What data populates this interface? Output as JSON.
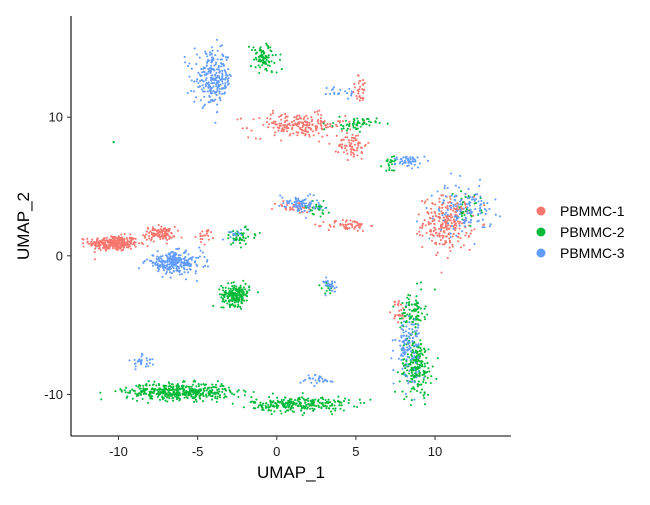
{
  "chart_data": {
    "type": "scatter",
    "title": "",
    "xlabel": "UMAP_1",
    "ylabel": "UMAP_2",
    "xlim": [
      -13,
      14.8
    ],
    "ylim": [
      -13,
      17.3
    ],
    "x_ticks": [
      -10,
      -5,
      0,
      5,
      10
    ],
    "x_tick_labels": [
      "-10",
      "-5",
      "0",
      "5",
      "10"
    ],
    "y_ticks": [
      -10,
      0,
      10
    ],
    "y_tick_labels": [
      "-10",
      "0",
      "10"
    ],
    "grid": false,
    "legend_position": "right",
    "point_size_note": "tiny dots",
    "series": [
      {
        "name": "PBMMC-1",
        "color": "#F8766D",
        "clusters": [
          {
            "cx": -10.3,
            "cy": 0.9,
            "rx": 1.4,
            "ry": 0.5,
            "n": 300
          },
          {
            "cx": -7.4,
            "cy": 1.6,
            "rx": 0.9,
            "ry": 0.45,
            "n": 110
          },
          {
            "cx": 10.8,
            "cy": 2.4,
            "rx": 1.4,
            "ry": 1.7,
            "n": 260
          },
          {
            "cx": 1.3,
            "cy": 9.4,
            "rx": 2.7,
            "ry": 0.8,
            "n": 200
          },
          {
            "cx": 4.8,
            "cy": 8.0,
            "rx": 0.8,
            "ry": 0.9,
            "n": 70
          },
          {
            "cx": 4.5,
            "cy": 2.2,
            "rx": 1.2,
            "ry": 0.4,
            "n": 60
          },
          {
            "cx": 1.2,
            "cy": 3.5,
            "rx": 1.2,
            "ry": 0.4,
            "n": 40
          },
          {
            "cx": 5.3,
            "cy": 12.0,
            "rx": 0.5,
            "ry": 0.9,
            "n": 30
          },
          {
            "cx": 7.7,
            "cy": -4.0,
            "rx": 0.4,
            "ry": 0.8,
            "n": 25
          },
          {
            "cx": -4.4,
            "cy": 1.4,
            "rx": 0.5,
            "ry": 0.5,
            "n": 20
          }
        ]
      },
      {
        "name": "PBMMC-2",
        "color": "#00BA38",
        "clusters": [
          {
            "cx": -2.6,
            "cy": -2.8,
            "rx": 0.8,
            "ry": 0.7,
            "n": 210
          },
          {
            "cx": -6.2,
            "cy": -9.8,
            "rx": 3.0,
            "ry": 0.55,
            "n": 460
          },
          {
            "cx": 1.5,
            "cy": -10.7,
            "rx": 2.8,
            "ry": 0.5,
            "n": 260
          },
          {
            "cx": 8.8,
            "cy": -8.0,
            "rx": 0.9,
            "ry": 1.9,
            "n": 210
          },
          {
            "cx": 8.6,
            "cy": -4.0,
            "rx": 0.7,
            "ry": 1.3,
            "n": 90
          },
          {
            "cx": -0.8,
            "cy": 14.2,
            "rx": 0.8,
            "ry": 1.0,
            "n": 90
          },
          {
            "cx": 5.0,
            "cy": 9.5,
            "rx": 1.2,
            "ry": 0.4,
            "n": 60
          },
          {
            "cx": -2.3,
            "cy": 1.4,
            "rx": 1.0,
            "ry": 0.6,
            "n": 50
          },
          {
            "cx": 2.5,
            "cy": 3.4,
            "rx": 0.8,
            "ry": 0.5,
            "n": 30
          },
          {
            "cx": 12.0,
            "cy": 3.5,
            "rx": 0.8,
            "ry": 1.0,
            "n": 30
          },
          {
            "cx": 7.2,
            "cy": 6.7,
            "rx": 0.5,
            "ry": 0.5,
            "n": 20
          },
          {
            "cx": 3.3,
            "cy": -2.3,
            "rx": 0.4,
            "ry": 0.4,
            "n": 15
          },
          {
            "cx": -10.3,
            "cy": 8.2,
            "rx": 0.05,
            "ry": 0.05,
            "n": 3
          }
        ]
      },
      {
        "name": "PBMMC-3",
        "color": "#619CFF",
        "clusters": [
          {
            "cx": -6.5,
            "cy": -0.5,
            "rx": 1.6,
            "ry": 0.7,
            "n": 260
          },
          {
            "cx": -4.0,
            "cy": 12.8,
            "rx": 1.1,
            "ry": 1.7,
            "n": 260
          },
          {
            "cx": 11.8,
            "cy": 3.3,
            "rx": 1.6,
            "ry": 1.6,
            "n": 130
          },
          {
            "cx": 8.3,
            "cy": -6.5,
            "rx": 0.7,
            "ry": 2.0,
            "n": 120
          },
          {
            "cx": 1.4,
            "cy": 3.8,
            "rx": 1.2,
            "ry": 0.6,
            "n": 80
          },
          {
            "cx": 8.4,
            "cy": 6.8,
            "rx": 0.8,
            "ry": 0.4,
            "n": 50
          },
          {
            "cx": -8.5,
            "cy": -7.6,
            "rx": 0.6,
            "ry": 0.4,
            "n": 30
          },
          {
            "cx": 2.6,
            "cy": -9.0,
            "rx": 1.0,
            "ry": 0.4,
            "n": 30
          },
          {
            "cx": 3.4,
            "cy": -2.1,
            "rx": 0.4,
            "ry": 0.5,
            "n": 25
          },
          {
            "cx": 4.0,
            "cy": 11.8,
            "rx": 0.7,
            "ry": 0.5,
            "n": 20
          },
          {
            "cx": -2.6,
            "cy": 1.5,
            "rx": 0.4,
            "ry": 0.4,
            "n": 15
          }
        ]
      }
    ]
  },
  "legend": {
    "items": [
      {
        "label": "PBMMC-1",
        "color": "#F8766D"
      },
      {
        "label": "PBMMC-2",
        "color": "#00BA38"
      },
      {
        "label": "PBMMC-3",
        "color": "#619CFF"
      }
    ]
  }
}
